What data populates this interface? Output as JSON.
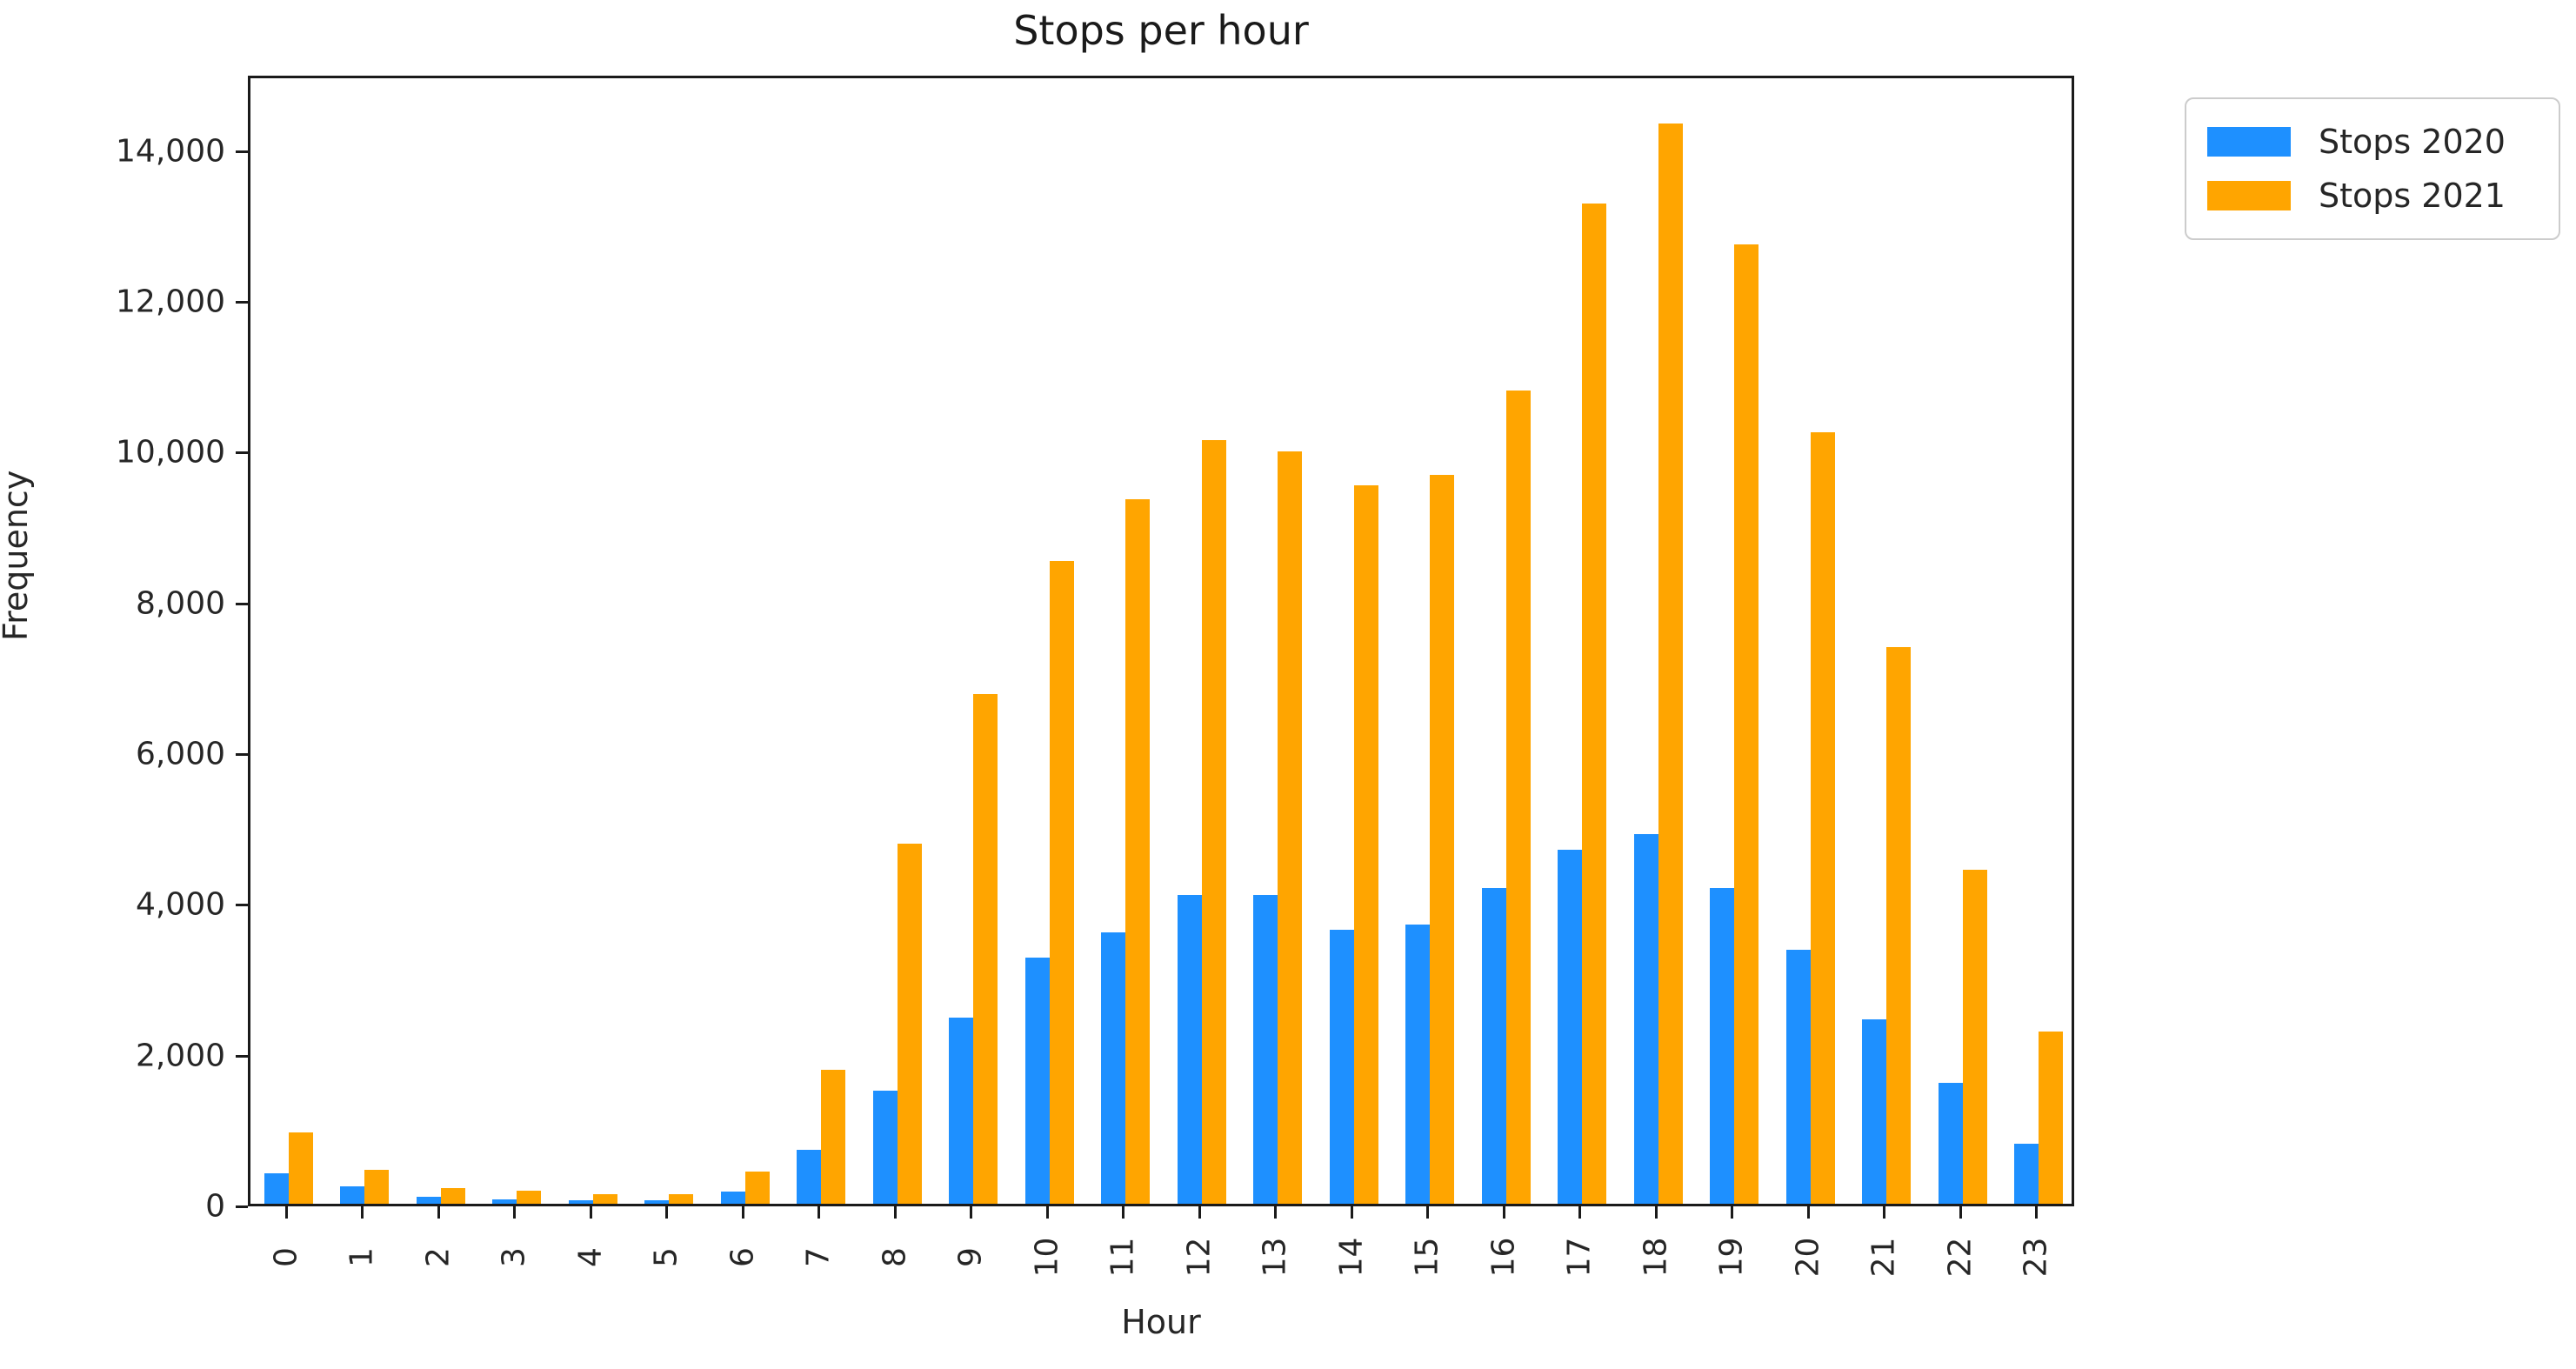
{
  "chart_data": {
    "type": "bar",
    "title": "Stops per hour",
    "xlabel": "Hour",
    "ylabel": "Frequency",
    "categories": [
      "0",
      "1",
      "2",
      "3",
      "4",
      "5",
      "6",
      "7",
      "8",
      "9",
      "10",
      "11",
      "12",
      "13",
      "14",
      "15",
      "16",
      "17",
      "18",
      "19",
      "20",
      "21",
      "22",
      "23"
    ],
    "series": [
      {
        "name": "Stops 2020",
        "color": "#1E90FF",
        "values": [
          400,
          230,
          90,
          55,
          50,
          45,
          160,
          720,
          1500,
          2470,
          3260,
          3600,
          4100,
          4100,
          3630,
          3700,
          4190,
          4700,
          4900,
          4190,
          3370,
          2450,
          1600,
          800
        ]
      },
      {
        "name": "Stops 2021",
        "color": "#FFA500",
        "values": [
          950,
          450,
          210,
          170,
          130,
          125,
          430,
          1780,
          4780,
          6760,
          8530,
          9350,
          10130,
          9980,
          9530,
          9670,
          10790,
          13270,
          14330,
          12730,
          10240,
          7390,
          4430,
          2290
        ]
      }
    ],
    "ylim": [
      0,
      15000
    ],
    "yticks": [
      0,
      2000,
      4000,
      6000,
      8000,
      10000,
      12000,
      14000
    ],
    "ytick_labels": [
      "0",
      "2,000",
      "4,000",
      "6,000",
      "8,000",
      "10,000",
      "12,000",
      "14,000"
    ],
    "x_tick_rotation": 90,
    "grid": false,
    "legend_position": "outside-upper-right"
  },
  "colors": {
    "axis": "#1a1a1a",
    "text": "#262626",
    "background": "#ffffff",
    "legend_border": "#cccccc"
  }
}
